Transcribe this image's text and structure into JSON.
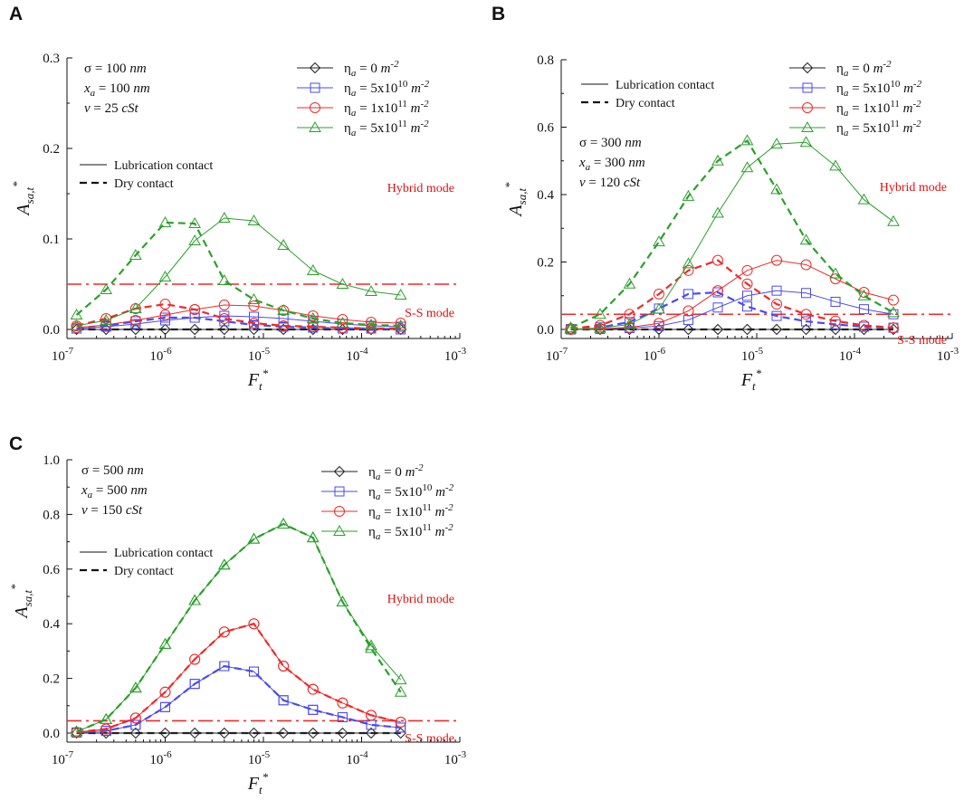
{
  "chart_data": [
    {
      "panel_label": "A",
      "type": "line",
      "x_scale": "log",
      "xlim_exp": [
        -7,
        -3
      ],
      "ylim": [
        0,
        0.3
      ],
      "yticks": [
        0.0,
        0.1,
        0.2,
        0.3
      ],
      "ytick_labels": [
        "0.0",
        "0.1",
        "0.2",
        "0.3"
      ],
      "xlabel": {
        "base": "F",
        "sub": "t",
        "sup": "*"
      },
      "ylabel": {
        "base": "A",
        "sub": "sa,t",
        "sup": "*"
      },
      "params": [
        {
          "sym": "σ",
          "sub": "",
          "value": " = 100 ",
          "unit": "nm"
        },
        {
          "sym": "x",
          "sub": "a",
          "value": " = 100 ",
          "unit": "nm"
        },
        {
          "sym": "v",
          "sub": "",
          "value": " = 25 ",
          "unit": "cSt"
        }
      ],
      "threshold": 0.05,
      "hybrid_label": "Hybrid mode",
      "ss_label": "S-S mode",
      "x_exp": [
        -6.903,
        -6.602,
        -6.301,
        -6.0,
        -5.699,
        -5.398,
        -5.097,
        -4.796,
        -4.495,
        -4.194,
        -3.903,
        -3.602
      ],
      "series": [
        {
          "name": "η_a = 0 m^-2",
          "color": "#222222",
          "marker": "diamond",
          "lub": [
            0,
            0,
            0,
            0,
            0,
            0,
            0,
            0,
            0,
            0,
            0,
            0
          ],
          "dry": [
            0,
            0,
            0,
            0,
            0,
            0,
            0,
            0,
            0,
            0,
            0,
            0
          ]
        },
        {
          "name": "η_a = 5x10^10 m^-2",
          "color": "#4a4af0",
          "marker": "square",
          "lub": [
            0.001,
            0.003,
            0.006,
            0.01,
            0.013,
            0.015,
            0.014,
            0.012,
            0.009,
            0.006,
            0.004,
            0.003
          ],
          "dry": [
            0.001,
            0.004,
            0.009,
            0.013,
            0.013,
            0.009,
            0.005,
            0.003,
            0.002,
            0.001,
            0.001,
            0.0
          ]
        },
        {
          "name": "η_a = 1x10^11 m^-2",
          "color": "#ee2a2a",
          "marker": "circle",
          "lub": [
            0.002,
            0.005,
            0.01,
            0.016,
            0.022,
            0.027,
            0.026,
            0.021,
            0.015,
            0.011,
            0.008,
            0.007
          ],
          "dry": [
            0.004,
            0.012,
            0.023,
            0.028,
            0.022,
            0.012,
            0.007,
            0.004,
            0.003,
            0.002,
            0.001,
            0.001
          ]
        },
        {
          "name": "η_a = 5x10^11 m^-2",
          "color": "#2aa02a",
          "marker": "triangle",
          "lub": [
            0.004,
            0.01,
            0.023,
            0.058,
            0.098,
            0.123,
            0.12,
            0.093,
            0.065,
            0.05,
            0.042,
            0.038
          ],
          "dry": [
            0.016,
            0.044,
            0.082,
            0.118,
            0.117,
            0.054,
            0.033,
            0.021,
            0.012,
            0.007,
            0.005,
            0.004
          ]
        }
      ],
      "legend_entries": [
        {
          "label": "η",
          "sub": "a",
          "text": " = 0 ",
          "unit": "m",
          "sup": "-2",
          "mid": "",
          "midsup": ""
        },
        {
          "label": "η",
          "sub": "a",
          "text": " = 5x10",
          "midsup": "10",
          "unit": "m",
          "sup": "-2"
        },
        {
          "label": "η",
          "sub": "a",
          "text": " = 1x10",
          "midsup": "11",
          "unit": "m",
          "sup": "-2"
        },
        {
          "label": "η",
          "sub": "a",
          "text": " = 5x10",
          "midsup": "11",
          "unit": "m",
          "sup": "-2"
        }
      ],
      "style_legend": [
        "Lubrication contact",
        "Dry contact"
      ]
    },
    {
      "panel_label": "B",
      "type": "line",
      "x_scale": "log",
      "xlim_exp": [
        -7,
        -3
      ],
      "ylim": [
        0,
        0.8
      ],
      "yticks": [
        0.0,
        0.2,
        0.4,
        0.6,
        0.8
      ],
      "ytick_labels": [
        "0.0",
        "0.2",
        "0.4",
        "0.6",
        "0.8"
      ],
      "xlabel": {
        "base": "F",
        "sub": "t",
        "sup": "*"
      },
      "ylabel": {
        "base": "A",
        "sub": "sa,t",
        "sup": "*"
      },
      "params": [
        {
          "sym": "σ",
          "sub": "",
          "value": " = 300 ",
          "unit": "nm"
        },
        {
          "sym": "x",
          "sub": "a",
          "value": " = 300 ",
          "unit": "nm"
        },
        {
          "sym": "v",
          "sub": "",
          "value": " = 120 ",
          "unit": "cSt"
        }
      ],
      "threshold": 0.045,
      "hybrid_label": "Hybrid mode",
      "ss_label": "S-S mode",
      "x_exp": [
        -6.903,
        -6.602,
        -6.301,
        -6.0,
        -5.699,
        -5.398,
        -5.097,
        -4.796,
        -4.495,
        -4.194,
        -3.903,
        -3.602
      ],
      "series": [
        {
          "name": "η_a = 0 m^-2",
          "color": "#222222",
          "marker": "diamond",
          "lub": [
            0,
            0,
            0,
            0,
            0,
            0,
            0,
            0,
            0,
            0,
            0,
            0
          ],
          "dry": [
            0,
            0,
            0,
            0,
            0,
            0,
            0,
            0,
            0,
            0,
            0,
            0
          ]
        },
        {
          "name": "η_a = 5x10^10 m^-2",
          "color": "#4a4af0",
          "marker": "square",
          "lub": [
            0.0,
            0.001,
            0.004,
            0.01,
            0.028,
            0.065,
            0.1,
            0.115,
            0.108,
            0.082,
            0.06,
            0.045
          ],
          "dry": [
            0.001,
            0.006,
            0.022,
            0.062,
            0.105,
            0.11,
            0.068,
            0.04,
            0.024,
            0.015,
            0.008,
            0.005
          ]
        },
        {
          "name": "η_a = 1x10^11 m^-2",
          "color": "#ee2a2a",
          "marker": "circle",
          "lub": [
            0.0,
            0.002,
            0.006,
            0.018,
            0.055,
            0.115,
            0.175,
            0.205,
            0.192,
            0.15,
            0.11,
            0.087
          ],
          "dry": [
            0.002,
            0.012,
            0.045,
            0.105,
            0.175,
            0.205,
            0.135,
            0.075,
            0.045,
            0.025,
            0.012,
            0.005
          ]
        },
        {
          "name": "η_a = 5x10^11 m^-2",
          "color": "#2aa02a",
          "marker": "triangle",
          "lub": [
            0.001,
            0.004,
            0.015,
            0.06,
            0.195,
            0.345,
            0.48,
            0.55,
            0.555,
            0.485,
            0.385,
            0.32
          ],
          "dry": [
            0.005,
            0.045,
            0.135,
            0.26,
            0.395,
            0.5,
            0.56,
            0.415,
            0.265,
            0.165,
            0.1,
            0.05
          ]
        }
      ],
      "legend_entries": [
        {
          "label": "η",
          "sub": "a",
          "text": " = 0 ",
          "unit": "m",
          "sup": "-2",
          "midsup": ""
        },
        {
          "label": "η",
          "sub": "a",
          "text": " = 5x10",
          "midsup": "10",
          "unit": "m",
          "sup": "-2"
        },
        {
          "label": "η",
          "sub": "a",
          "text": " = 1x10",
          "midsup": "11",
          "unit": "m",
          "sup": "-2"
        },
        {
          "label": "η",
          "sub": "a",
          "text": " = 5x10",
          "midsup": "11",
          "unit": "m",
          "sup": "-2"
        }
      ],
      "style_legend": [
        "Lubrication contact",
        "Dry contact"
      ]
    },
    {
      "panel_label": "C",
      "type": "line",
      "x_scale": "log",
      "xlim_exp": [
        -7,
        -3
      ],
      "ylim": [
        0,
        1.0
      ],
      "yticks": [
        0.0,
        0.2,
        0.4,
        0.6,
        0.8,
        1.0
      ],
      "ytick_labels": [
        "0.0",
        "0.2",
        "0.4",
        "0.6",
        "0.8",
        "1.0"
      ],
      "xlabel": {
        "base": "F",
        "sub": "t",
        "sup": "*"
      },
      "ylabel": {
        "base": "A",
        "sub": "sa,t",
        "sup": "*"
      },
      "params": [
        {
          "sym": "σ",
          "sub": "",
          "value": " = 500 ",
          "unit": "nm"
        },
        {
          "sym": "x",
          "sub": "a",
          "value": " = 500 ",
          "unit": "nm"
        },
        {
          "sym": "v",
          "sub": "",
          "value": " = 150 ",
          "unit": "cSt"
        }
      ],
      "threshold": 0.045,
      "hybrid_label": "Hybrid mode",
      "ss_label": "S-S mode",
      "x_exp": [
        -6.903,
        -6.602,
        -6.301,
        -6.0,
        -5.699,
        -5.398,
        -5.097,
        -4.796,
        -4.495,
        -4.194,
        -3.903,
        -3.602
      ],
      "series": [
        {
          "name": "η_a = 0 m^-2",
          "color": "#222222",
          "marker": "diamond",
          "lub": [
            0,
            0,
            0,
            0,
            0,
            0,
            0,
            0,
            0,
            0,
            0,
            0
          ],
          "dry": [
            0,
            0,
            0,
            0,
            0,
            0,
            0,
            0,
            0,
            0,
            0,
            0
          ]
        },
        {
          "name": "η_a = 5x10^10 m^-2",
          "color": "#4a4af0",
          "marker": "square",
          "lub": [
            0.002,
            0.008,
            0.03,
            0.095,
            0.18,
            0.245,
            0.225,
            0.12,
            0.085,
            0.058,
            0.03,
            0.02
          ],
          "dry": [
            0.002,
            0.008,
            0.03,
            0.095,
            0.18,
            0.245,
            0.225,
            0.12,
            0.085,
            0.058,
            0.03,
            0.02
          ]
        },
        {
          "name": "η_a = 1x10^11 m^-2",
          "color": "#ee2a2a",
          "marker": "circle",
          "lub": [
            0.003,
            0.015,
            0.055,
            0.15,
            0.27,
            0.37,
            0.4,
            0.245,
            0.16,
            0.11,
            0.065,
            0.04
          ],
          "dry": [
            0.003,
            0.015,
            0.055,
            0.15,
            0.27,
            0.37,
            0.4,
            0.245,
            0.16,
            0.11,
            0.065,
            0.04
          ]
        },
        {
          "name": "η_a = 5x10^11 m^-2",
          "color": "#2aa02a",
          "marker": "triangle",
          "lub": [
            0.005,
            0.05,
            0.165,
            0.325,
            0.485,
            0.615,
            0.71,
            0.765,
            0.715,
            0.48,
            0.32,
            0.195
          ],
          "dry": [
            0.005,
            0.05,
            0.165,
            0.325,
            0.485,
            0.615,
            0.71,
            0.765,
            0.715,
            0.48,
            0.31,
            0.15
          ]
        }
      ],
      "legend_entries": [
        {
          "label": "η",
          "sub": "a",
          "text": " = 0 ",
          "unit": "m",
          "sup": "-2",
          "midsup": ""
        },
        {
          "label": "η",
          "sub": "a",
          "text": " = 5x10",
          "midsup": "10",
          "unit": "m",
          "sup": "-2"
        },
        {
          "label": "η",
          "sub": "a",
          "text": " = 1x10",
          "midsup": "11",
          "unit": "m",
          "sup": "-2"
        },
        {
          "label": "η",
          "sub": "a",
          "text": " = 5x10",
          "midsup": "11",
          "unit": "m",
          "sup": "-2"
        }
      ],
      "style_legend": [
        "Lubrication contact",
        "Dry contact"
      ]
    }
  ],
  "colors": {
    "axis": "#111111",
    "threshold": "#ee2a2a",
    "mode_label": "#e01010"
  }
}
